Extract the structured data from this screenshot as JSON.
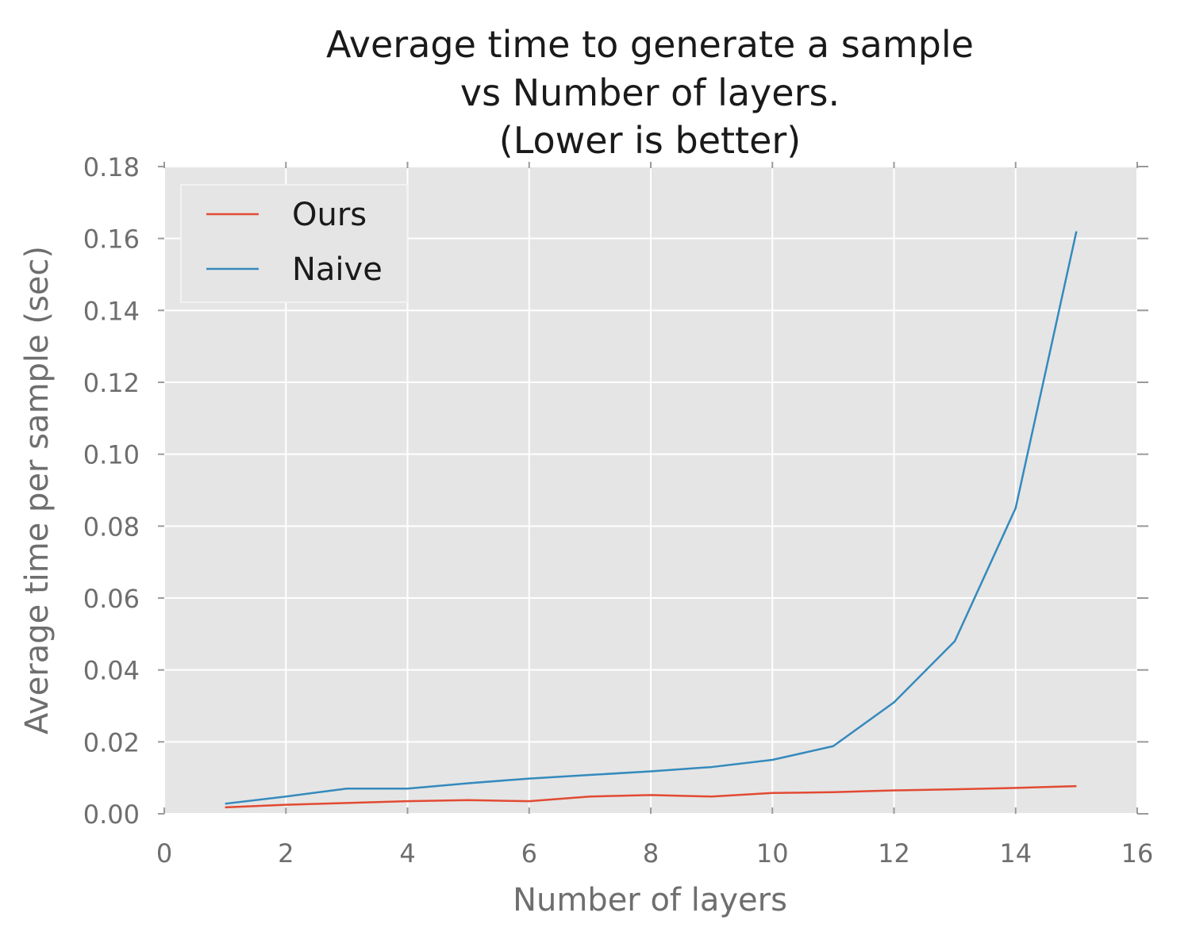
{
  "chart_data": {
    "type": "line",
    "title": [
      "Average time to generate a sample",
      "vs Number of layers.",
      "(Lower is better)"
    ],
    "xlabel": "Number of layers",
    "ylabel": "Average time per sample (sec)",
    "xlim": [
      0,
      16
    ],
    "ylim": [
      0,
      0.18
    ],
    "xticks": [
      0,
      2,
      4,
      6,
      8,
      10,
      12,
      14,
      16
    ],
    "xtick_labels": [
      "0",
      "2",
      "4",
      "6",
      "8",
      "10",
      "12",
      "14",
      "16"
    ],
    "yticks": [
      0,
      0.02,
      0.04,
      0.06,
      0.08,
      0.1,
      0.12,
      0.14,
      0.16,
      0.18
    ],
    "ytick_labels": [
      "0.00",
      "0.02",
      "0.04",
      "0.06",
      "0.08",
      "0.10",
      "0.12",
      "0.14",
      "0.16",
      "0.18"
    ],
    "grid": true,
    "legend_position": "top-left",
    "x": [
      1,
      2,
      3,
      4,
      5,
      6,
      7,
      8,
      9,
      10,
      11,
      12,
      13,
      14,
      15
    ],
    "series": [
      {
        "name": "Ours",
        "color": "#e24a33",
        "values": [
          0.0018,
          0.0025,
          0.003,
          0.0035,
          0.0038,
          0.0035,
          0.0048,
          0.0052,
          0.0048,
          0.0058,
          0.006,
          0.0065,
          0.0068,
          0.0072,
          0.0077
        ]
      },
      {
        "name": "Naive",
        "color": "#348abd",
        "values": [
          0.0028,
          0.0048,
          0.007,
          0.007,
          0.0085,
          0.0098,
          0.0108,
          0.0118,
          0.013,
          0.015,
          0.0188,
          0.031,
          0.048,
          0.085,
          0.162
        ]
      }
    ],
    "colors": {
      "plot_background": "#e5e5e5",
      "grid": "#ffffff",
      "tick_text": "#6e6e6e",
      "title_text": "#1a1a1a"
    }
  }
}
